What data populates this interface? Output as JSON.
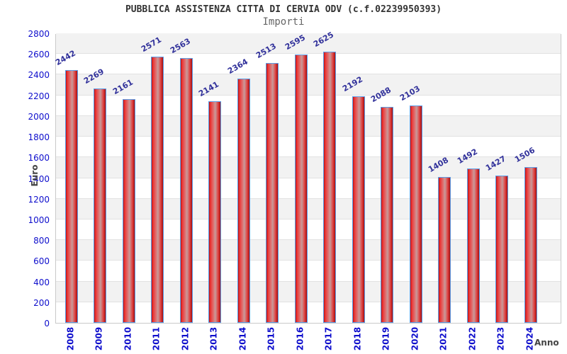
{
  "header": {
    "title": "PUBBLICA ASSISTENZA CITTA DI CERVIA ODV (c.f.02239950393)",
    "subtitle": "Importi"
  },
  "chart_data": {
    "type": "bar",
    "categories": [
      "2008",
      "2009",
      "2010",
      "2011",
      "2012",
      "2013",
      "2014",
      "2015",
      "2016",
      "2017",
      "2018",
      "2019",
      "2020",
      "2021",
      "2022",
      "2023",
      "2024"
    ],
    "values": [
      2442,
      2269,
      2161,
      2571,
      2563,
      2141,
      2364,
      2513,
      2595,
      2625,
      2192,
      2088,
      2103,
      1408,
      1492,
      1427,
      1506
    ],
    "title": "PUBBLICA ASSISTENZA CITTA DI CERVIA ODV (c.f.02239950393)",
    "subtitle": "Importi",
    "xlabel": "Anno",
    "ylabel": "Euro",
    "ylim": [
      0,
      2800
    ],
    "ytick_step": 200,
    "grid": "horizontal alternating bands every 200 units",
    "legend": "none",
    "value_labels": "above bars, rotated -30deg"
  },
  "colors": {
    "bar_fill_main": "#e03030",
    "bar_fill_highlight": "#c79a9a",
    "bar_fill_edge": "#a31010",
    "bar_border": "#5b9ce6",
    "axis_tick_label": "#0e0ecc",
    "value_label": "#32329b",
    "band_gray": "#f2f2f2",
    "grid_line": "#e2e2e2",
    "plot_border": "#c9c9c9",
    "title": "#333333",
    "subtitle": "#666666",
    "axis_title": "#444444"
  }
}
